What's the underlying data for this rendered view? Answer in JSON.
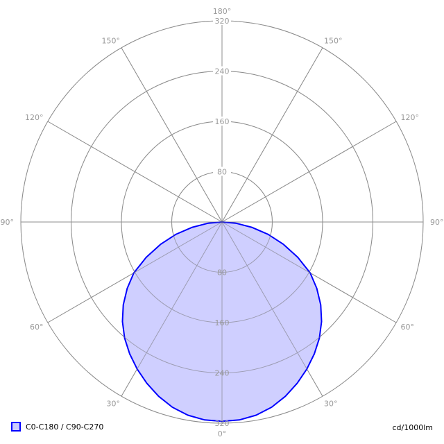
{
  "chart_data": {
    "type": "polar",
    "title": "",
    "unit_label": "cd/1000lm",
    "radial_ticks": [
      80,
      160,
      240,
      320
    ],
    "radial_max": 320,
    "angle_ticks": [
      "0°",
      "30°",
      "60°",
      "90°",
      "120°",
      "150°",
      "180°"
    ],
    "angle_tick_values": [
      0,
      30,
      60,
      90,
      120,
      150,
      180
    ],
    "grid": true,
    "legend_position": "bottom-left",
    "series": [
      {
        "name": "C0-C180 / C90-C270",
        "color": "#0000ff",
        "fill": "#ccccff",
        "angles": [
          0,
          5,
          10,
          15,
          20,
          25,
          30,
          35,
          40,
          45,
          50,
          55,
          60,
          65,
          70,
          75,
          80,
          85,
          90
        ],
        "values": [
          317,
          316,
          312,
          305,
          295,
          283,
          270,
          256,
          241,
          224,
          205,
          184,
          162,
          133,
          104,
          76,
          48,
          22,
          0
        ]
      }
    ]
  },
  "colors": {
    "grid": "#a8a8a8",
    "label": "#999999"
  }
}
